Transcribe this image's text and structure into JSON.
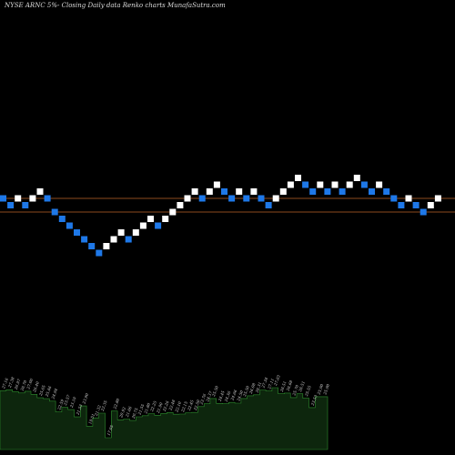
{
  "title": "NYSE ARNC 5%-  Closing Daily data  Renko  charts MunafaSutra.com",
  "colors": {
    "background": "#000000",
    "up_brick": "#ffffff",
    "down_brick": "#1e78e8",
    "level_line": "#8b4a1e",
    "volume_fill": "#0d260d",
    "volume_edge": "#2e8b2e",
    "label_text": "#d8d8d8"
  },
  "chart_data": [
    {
      "type": "renko",
      "title": "NYSE ARNC 5%-  Closing Daily data  Renko  charts MunafaSutra.com",
      "level_lines": [
        25.9,
        25.1
      ],
      "bricks": [
        {
          "level": 25.9,
          "dir": "down"
        },
        {
          "level": 25.5,
          "dir": "down"
        },
        {
          "level": 25.9,
          "dir": "up"
        },
        {
          "level": 25.5,
          "dir": "down"
        },
        {
          "level": 25.9,
          "dir": "up"
        },
        {
          "level": 26.3,
          "dir": "up"
        },
        {
          "level": 25.9,
          "dir": "down"
        },
        {
          "level": 25.1,
          "dir": "down"
        },
        {
          "level": 24.7,
          "dir": "down"
        },
        {
          "level": 24.3,
          "dir": "down"
        },
        {
          "level": 23.9,
          "dir": "down"
        },
        {
          "level": 23.5,
          "dir": "down"
        },
        {
          "level": 23.1,
          "dir": "down"
        },
        {
          "level": 22.7,
          "dir": "down"
        },
        {
          "level": 23.1,
          "dir": "up"
        },
        {
          "level": 23.5,
          "dir": "up"
        },
        {
          "level": 23.9,
          "dir": "up"
        },
        {
          "level": 23.5,
          "dir": "down"
        },
        {
          "level": 23.9,
          "dir": "up"
        },
        {
          "level": 24.3,
          "dir": "up"
        },
        {
          "level": 24.7,
          "dir": "up"
        },
        {
          "level": 24.3,
          "dir": "down"
        },
        {
          "level": 24.7,
          "dir": "up"
        },
        {
          "level": 25.1,
          "dir": "up"
        },
        {
          "level": 25.5,
          "dir": "up"
        },
        {
          "level": 25.9,
          "dir": "up"
        },
        {
          "level": 26.3,
          "dir": "up"
        },
        {
          "level": 25.9,
          "dir": "down"
        },
        {
          "level": 26.3,
          "dir": "up"
        },
        {
          "level": 26.7,
          "dir": "up"
        },
        {
          "level": 26.3,
          "dir": "down"
        },
        {
          "level": 25.9,
          "dir": "down"
        },
        {
          "level": 26.3,
          "dir": "up"
        },
        {
          "level": 25.9,
          "dir": "down"
        },
        {
          "level": 26.3,
          "dir": "up"
        },
        {
          "level": 25.9,
          "dir": "down"
        },
        {
          "level": 25.5,
          "dir": "down"
        },
        {
          "level": 25.9,
          "dir": "up"
        },
        {
          "level": 26.3,
          "dir": "up"
        },
        {
          "level": 26.7,
          "dir": "up"
        },
        {
          "level": 27.1,
          "dir": "up"
        },
        {
          "level": 26.7,
          "dir": "down"
        },
        {
          "level": 26.3,
          "dir": "down"
        },
        {
          "level": 26.7,
          "dir": "up"
        },
        {
          "level": 26.3,
          "dir": "down"
        },
        {
          "level": 26.7,
          "dir": "up"
        },
        {
          "level": 26.3,
          "dir": "down"
        },
        {
          "level": 26.7,
          "dir": "up"
        },
        {
          "level": 27.1,
          "dir": "up"
        },
        {
          "level": 26.7,
          "dir": "down"
        },
        {
          "level": 26.3,
          "dir": "down"
        },
        {
          "level": 26.7,
          "dir": "up"
        },
        {
          "level": 26.3,
          "dir": "down"
        },
        {
          "level": 25.9,
          "dir": "down"
        },
        {
          "level": 25.5,
          "dir": "down"
        },
        {
          "level": 25.9,
          "dir": "up"
        },
        {
          "level": 25.5,
          "dir": "down"
        },
        {
          "level": 25.1,
          "dir": "down"
        },
        {
          "level": 25.5,
          "dir": "up"
        },
        {
          "level": 25.9,
          "dir": "up"
        }
      ]
    },
    {
      "type": "area",
      "description_free": true,
      "labels": [
        "27.16",
        "27.38",
        "26.97",
        "26.70",
        "27.06",
        "26.40",
        "25.65",
        "25.46",
        "24.94",
        "22.59",
        "23.57",
        "23.10",
        "21.53",
        "23.90",
        "19.51",
        "21.32",
        "22.35",
        "17.05",
        "22.80",
        "20.92",
        "21.06",
        "20.75",
        "21.55",
        "21.80",
        "22.25",
        "21.90",
        "22.26",
        "22.48",
        "22.10",
        "22.15",
        "22.45",
        "22.50",
        "23.76",
        "24.37",
        "25.50",
        "24.45",
        "24.36",
        "24.66",
        "24.50",
        "25.50",
        "26.08",
        "26.31",
        "27.34",
        "27.11",
        "27.83",
        "26.51",
        "26.68",
        "25.70",
        "26.51",
        "25.55",
        "23.53",
        "25.90",
        "25.90"
      ],
      "values": [
        27.16,
        27.38,
        26.97,
        26.7,
        27.06,
        26.4,
        25.65,
        25.46,
        24.94,
        22.59,
        23.57,
        23.1,
        21.53,
        23.9,
        19.51,
        21.32,
        22.35,
        17.05,
        22.8,
        20.92,
        21.06,
        20.75,
        21.55,
        21.8,
        22.25,
        21.9,
        22.26,
        22.48,
        22.1,
        22.15,
        22.45,
        22.5,
        23.76,
        24.37,
        25.5,
        24.45,
        24.36,
        24.66,
        24.5,
        25.5,
        26.08,
        26.31,
        27.34,
        27.11,
        27.83,
        26.51,
        26.68,
        25.7,
        26.51,
        25.55,
        23.53,
        25.9,
        25.9
      ]
    }
  ]
}
